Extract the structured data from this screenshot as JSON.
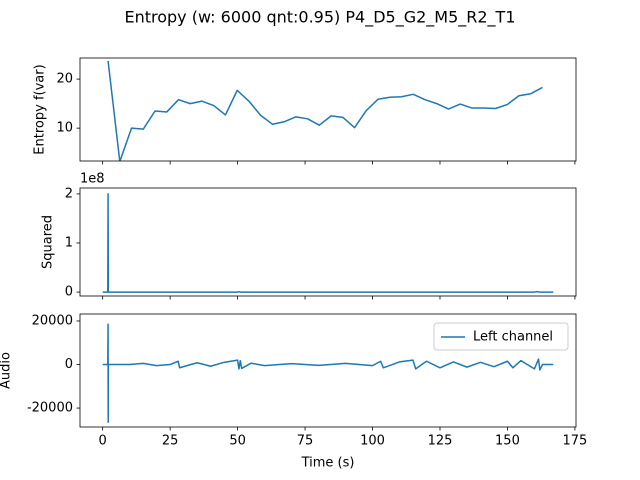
{
  "title": "Entropy (w: 6000 qnt:0.95) P4_D5_G2_M5_R2_T1",
  "chart_data": [
    {
      "type": "line",
      "ylabel": "Entropy f(var)",
      "xlim": [
        -8.4,
        175.4
      ],
      "xticks": [
        0,
        25,
        50,
        75,
        100,
        125,
        150,
        175
      ],
      "xtick_labels": false,
      "ylim": [
        3.3,
        24.3
      ],
      "yticks": [
        10,
        20
      ],
      "series": [
        {
          "color": "#1f77b4",
          "x": [
            2.0,
            6.35,
            10.7,
            15.05,
            19.4,
            23.75,
            28.1,
            32.45,
            36.8,
            41.15,
            45.5,
            49.85,
            54.2,
            58.55,
            62.9,
            67.25,
            71.6,
            75.95,
            80.3,
            84.65,
            89.0,
            93.35,
            97.7,
            102.05,
            106.4,
            110.75,
            115.1,
            119.45,
            123.8,
            128.15,
            132.5,
            136.85,
            141.2,
            145.55,
            149.9,
            154.25,
            158.6,
            162.95
          ],
          "values": [
            23.7,
            3.2,
            10.0,
            9.8,
            13.5,
            13.3,
            15.8,
            15.0,
            15.5,
            14.6,
            12.7,
            17.7,
            15.5,
            12.6,
            10.8,
            11.3,
            12.3,
            11.9,
            10.6,
            12.5,
            12.2,
            10.1,
            13.6,
            15.9,
            16.3,
            16.4,
            16.9,
            15.8,
            15.0,
            13.9,
            14.9,
            14.1,
            14.1,
            14.0,
            14.8,
            16.6,
            17.0,
            18.3
          ]
        }
      ]
    },
    {
      "type": "line",
      "ylabel": "Squared",
      "y_offset_label": "1e8",
      "xlim": [
        -8.4,
        175.4
      ],
      "xticks": [
        0,
        25,
        50,
        75,
        100,
        125,
        150,
        175
      ],
      "xtick_labels": false,
      "ylim": [
        -8000000,
        212000000
      ],
      "yticks": [
        {
          "value": 0,
          "label": "0"
        },
        {
          "value": 100000000,
          "label": "1"
        },
        {
          "value": 200000000,
          "label": "2"
        }
      ],
      "series": [
        {
          "color": "#1f77b4",
          "x": [
            0,
            1.9,
            2.0,
            2.1,
            50,
            50.5,
            51,
            160,
            161,
            162,
            167
          ],
          "values": [
            0,
            0,
            200000000,
            0,
            0,
            800000,
            0,
            0,
            1000000,
            0,
            0
          ]
        }
      ]
    },
    {
      "type": "line",
      "ylabel": "Audio",
      "xlabel": "Time (s)",
      "legend": "upper right",
      "xlim": [
        -8.4,
        175.4
      ],
      "xticks": [
        0,
        25,
        50,
        75,
        100,
        125,
        150,
        175
      ],
      "xtick_labels": true,
      "ylim": [
        -28700,
        23200
      ],
      "yticks": [
        -20000,
        0,
        20000
      ],
      "series": [
        {
          "name": "Left channel",
          "color": "#1f77b4",
          "x": [
            0,
            1.9,
            2.0,
            2.05,
            2.1,
            5,
            10,
            15,
            20,
            25,
            28,
            28.5,
            35,
            40,
            45,
            50,
            50.5,
            51,
            51.5,
            55,
            60,
            70,
            80,
            90,
            100,
            103,
            104,
            110,
            115,
            116,
            120,
            125,
            130,
            135,
            140,
            145,
            150,
            152,
            155,
            160,
            161.5,
            162,
            163,
            167
          ],
          "values": [
            0,
            0,
            18500,
            -26500,
            0,
            0,
            0,
            500,
            -500,
            0,
            1500,
            -1500,
            800,
            -800,
            1000,
            2000,
            -2000,
            1800,
            -1800,
            600,
            -500,
            400,
            -400,
            500,
            -500,
            1500,
            -1500,
            1200,
            2000,
            -2000,
            1500,
            -1500,
            1200,
            -1200,
            1000,
            -1000,
            1500,
            -1500,
            1800,
            -2000,
            2500,
            -2500,
            0,
            0
          ]
        }
      ]
    }
  ]
}
